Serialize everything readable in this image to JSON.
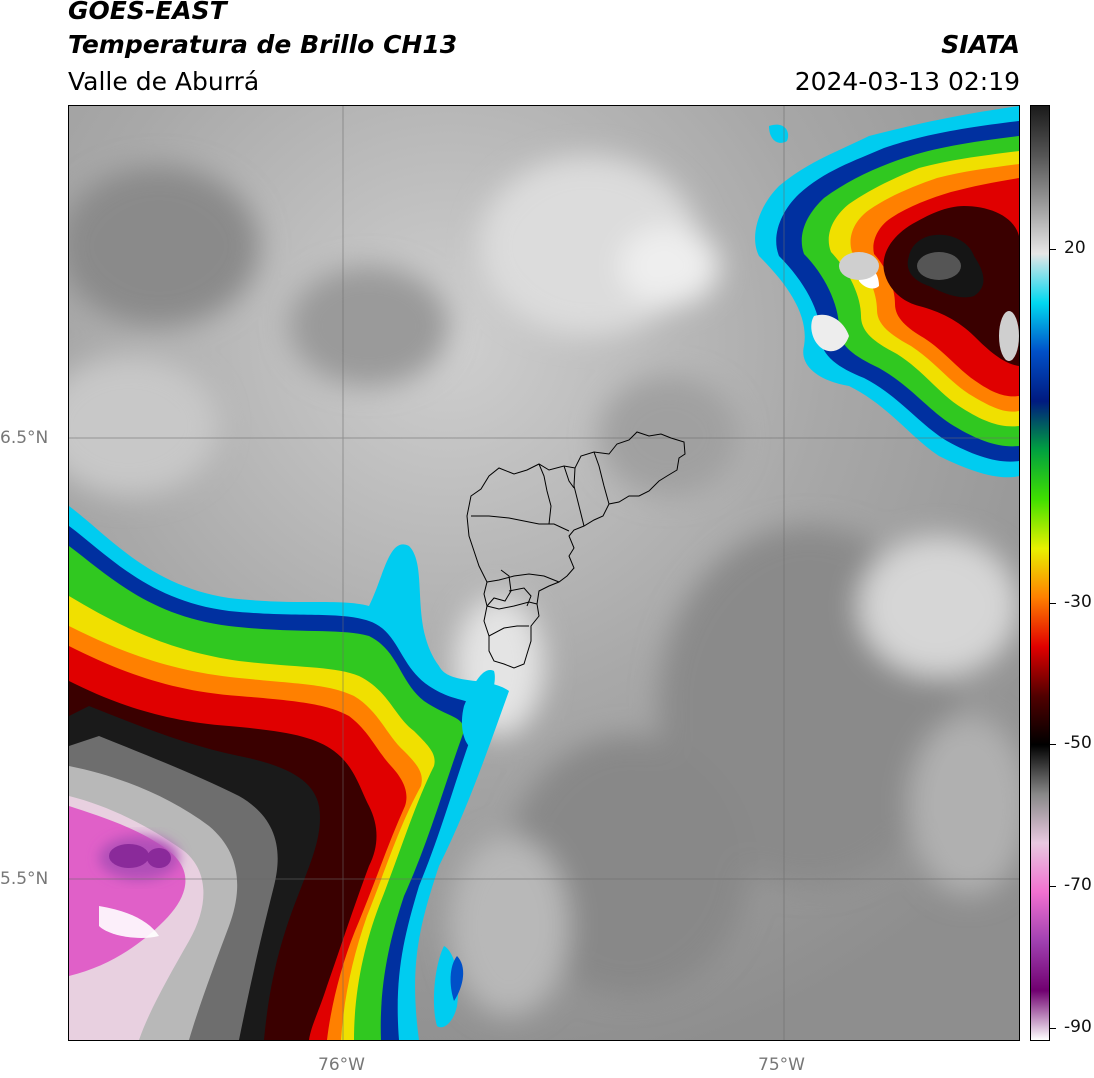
{
  "header": {
    "satellite": "GOES-EAST",
    "product": "Temperatura de Brillo CH13",
    "region": "Valle de Aburrá",
    "organization": "SIATA",
    "timestamp": "2024-03-13 02:19"
  },
  "axes": {
    "lat_labels": [
      "6.5°N",
      "5.5°N"
    ],
    "lon_labels": [
      "76°W",
      "75°W"
    ]
  },
  "colorbar": {
    "labels": [
      "20",
      "-30",
      "-50",
      "-70",
      "-90"
    ],
    "stops": [
      "#1a1a1a",
      "#555555",
      "#9a9a9a",
      "#e6e6e6",
      "#00d8f0",
      "#0050c8",
      "#001a80",
      "#00a040",
      "#40e000",
      "#e8f000",
      "#ff8000",
      "#e00000",
      "#500000",
      "#000000",
      "#888888",
      "#e8c8e0",
      "#f070d0",
      "#a040b0",
      "#700070",
      "#ffffff"
    ],
    "colors": {
      "cyan": "#00d0f0",
      "blue": "#0030a0",
      "green": "#30c820",
      "yellow": "#f0e000",
      "orange": "#ff8000",
      "red": "#e00000",
      "dark": "#1a0000",
      "magenta": "#e060c8",
      "purple": "#8a2a9a"
    }
  }
}
